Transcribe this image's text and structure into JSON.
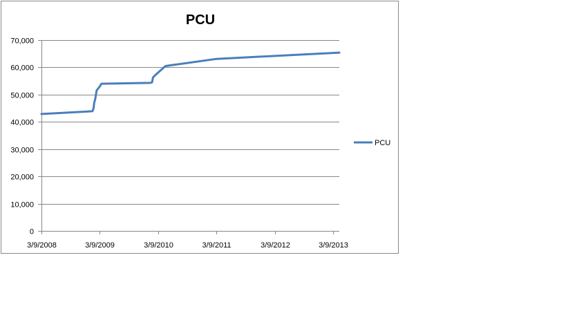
{
  "chart_data": {
    "type": "line",
    "title": "PCU",
    "xlabel": "",
    "ylabel": "",
    "ylim": [
      0,
      70000
    ],
    "yticks": [
      0,
      10000,
      20000,
      30000,
      40000,
      50000,
      60000,
      70000
    ],
    "ytick_labels": [
      "0",
      "10,000",
      "20,000",
      "30,000",
      "40,000",
      "50,000",
      "60,000",
      "70,000"
    ],
    "xlim": [
      "2008-03-09",
      "2013-04-16"
    ],
    "xticks": [
      "2008-03-09",
      "2009-03-09",
      "2010-03-09",
      "2011-03-09",
      "2012-03-09",
      "2013-03-09"
    ],
    "xtick_labels": [
      "3/9/2008",
      "3/9/2009",
      "3/9/2010",
      "3/9/2011",
      "3/9/2012",
      "3/9/2013"
    ],
    "grid": true,
    "legend": "right",
    "series": [
      {
        "name": "PCU",
        "color": "#4a7ebb",
        "points": [
          {
            "x": "2008-03-09",
            "y": 42900
          },
          {
            "x": "2009-01-22",
            "y": 43900
          },
          {
            "x": "2009-01-29",
            "y": 45000
          },
          {
            "x": "2009-02-02",
            "y": 47000
          },
          {
            "x": "2009-02-09",
            "y": 48500
          },
          {
            "x": "2009-02-17",
            "y": 51500
          },
          {
            "x": "2009-03-09",
            "y": 53000
          },
          {
            "x": "2009-03-19",
            "y": 54000
          },
          {
            "x": "2010-01-19",
            "y": 54300
          },
          {
            "x": "2010-01-30",
            "y": 54500
          },
          {
            "x": "2010-02-05",
            "y": 56300
          },
          {
            "x": "2010-02-22",
            "y": 57300
          },
          {
            "x": "2010-04-24",
            "y": 60500
          },
          {
            "x": "2011-03-09",
            "y": 63100
          },
          {
            "x": "2013-04-16",
            "y": 65400
          }
        ]
      }
    ]
  }
}
